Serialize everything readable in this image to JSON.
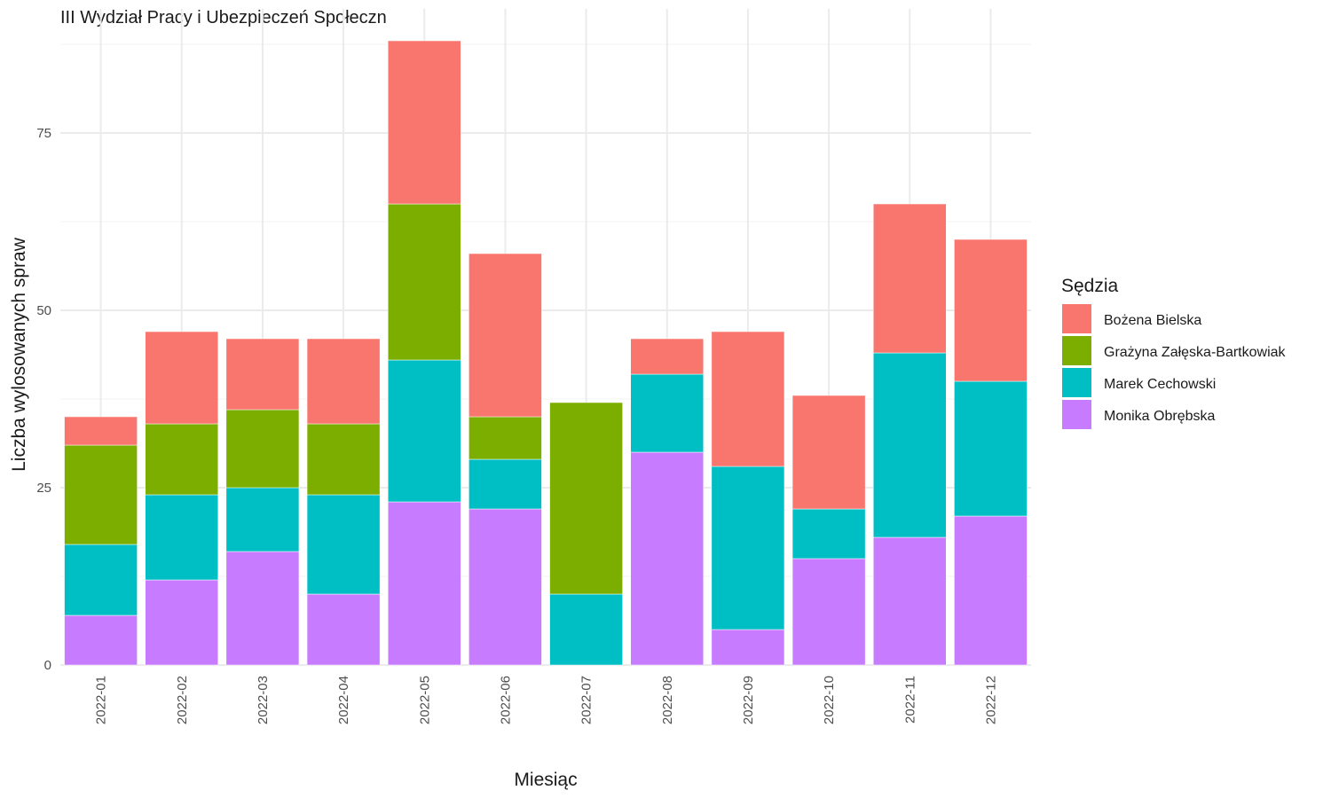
{
  "chart_data": {
    "type": "bar",
    "stacked": true,
    "title": "III Wydział Pracy i Ubezpieczeń Społeczn",
    "xlabel": "Miesiąc",
    "ylabel": "Liczba wylosowanych spraw",
    "ylim": [
      0,
      88
    ],
    "yticks": [
      0,
      25,
      50,
      75
    ],
    "grid": true,
    "legend": {
      "title": "Sędzia",
      "position": "right"
    },
    "categories": [
      "2022-01",
      "2022-02",
      "2022-03",
      "2022-04",
      "2022-05",
      "2022-06",
      "2022-07",
      "2022-08",
      "2022-09",
      "2022-10",
      "2022-11",
      "2022-12"
    ],
    "series": [
      {
        "name": "Bożena Bielska",
        "color": "#F8766D",
        "values": [
          4,
          13,
          10,
          12,
          23,
          23,
          0,
          5,
          19,
          16,
          21,
          20
        ]
      },
      {
        "name": "Grażyna Załęska-Bartkowiak",
        "color": "#7CAE00",
        "values": [
          14,
          10,
          11,
          10,
          22,
          6,
          27,
          0,
          0,
          0,
          0,
          0
        ]
      },
      {
        "name": "Marek Cechowski",
        "color": "#00BFC4",
        "values": [
          10,
          12,
          9,
          14,
          20,
          7,
          10,
          11,
          23,
          7,
          26,
          19
        ]
      },
      {
        "name": "Monika Obrębska",
        "color": "#C77CFF",
        "values": [
          7,
          12,
          16,
          10,
          23,
          22,
          0,
          30,
          5,
          15,
          18,
          21
        ]
      }
    ]
  }
}
